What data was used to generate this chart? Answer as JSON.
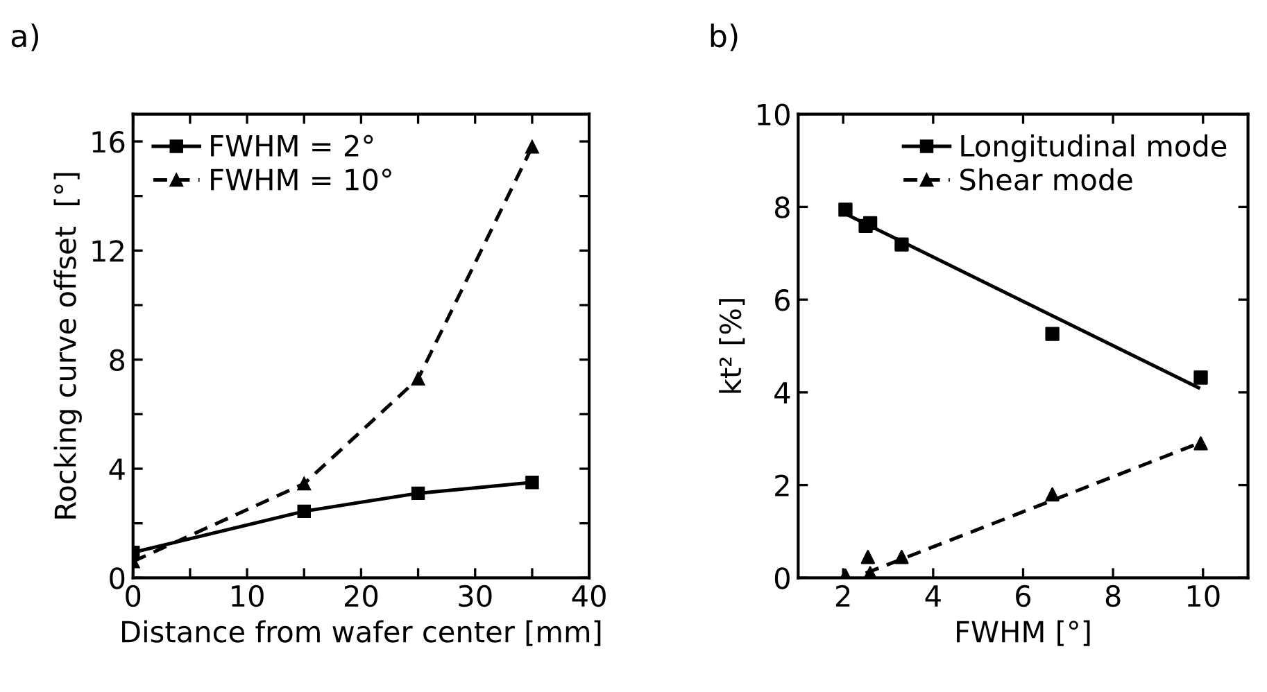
{
  "chart_data": [
    {
      "type": "line",
      "title": "a)",
      "xlabel": "Distance from wafer center [mm]",
      "ylabel": "Rocking curve offset  [°]",
      "xlim": [
        0,
        40
      ],
      "xticks": [
        0,
        {
          "value": 5,
          "label": null
        },
        10,
        {
          "value": 15,
          "label": null
        },
        20,
        {
          "value": 25,
          "label": null
        },
        30,
        {
          "value": 35,
          "label": null
        },
        40
      ],
      "ylim": [
        0,
        17
      ],
      "yticks": [
        0,
        {
          "value": 2,
          "label": null
        },
        4,
        {
          "value": 6,
          "label": null
        },
        8,
        {
          "value": 10,
          "label": null
        },
        12,
        {
          "value": 14,
          "label": null
        },
        16
      ],
      "legend": "top left",
      "grid": false,
      "series": [
        {
          "name": "FWHM = 2°",
          "color": "#000000",
          "marker": "square",
          "line_style": "solid",
          "x": [
            0,
            15,
            25,
            35
          ],
          "values": [
            0.93,
            2.44,
            3.1,
            3.5
          ]
        },
        {
          "name": "FWHM = 10°",
          "color": "#000000",
          "marker": "triangle",
          "line_style": "dashed",
          "x": [
            0,
            15,
            25,
            35
          ],
          "values": [
            0.6,
            3.45,
            7.3,
            15.8
          ]
        }
      ]
    },
    {
      "type": "scatter",
      "title": "b)",
      "xlabel": "FWHM [°]",
      "ylabel": "kt² [%]",
      "xlim": [
        1,
        11
      ],
      "xticks": [
        2,
        4,
        6,
        8,
        10
      ],
      "ylim": [
        0,
        10
      ],
      "yticks": [
        0,
        2,
        4,
        6,
        8,
        10
      ],
      "legend": "top right",
      "grid": false,
      "series": [
        {
          "name": "Longitudinal mode",
          "color": "#000000",
          "marker": "square",
          "line_style": "solid",
          "x": [
            2.05,
            2.5,
            2.6,
            3.3,
            6.65,
            9.95
          ],
          "values": [
            7.94,
            7.59,
            7.65,
            7.19,
            5.26,
            4.32
          ]
        },
        {
          "name": "Shear mode",
          "color": "#000000",
          "marker": "triangle",
          "line_style": "dashed",
          "x": [
            2.05,
            2.55,
            2.6,
            3.3,
            6.65,
            9.95
          ],
          "values": [
            0.05,
            0.45,
            0.1,
            0.45,
            1.8,
            2.9
          ]
        },
        {
          "type": "line",
          "color": "#000000",
          "line_style": "solid",
          "x": [
            2.05,
            9.9
          ],
          "values": [
            7.85,
            4.1
          ]
        },
        {
          "type": "line",
          "color": "#000000",
          "line_style": "dashed",
          "x": [
            2.5,
            9.9
          ],
          "values": [
            0.1,
            2.9
          ]
        }
      ]
    }
  ]
}
